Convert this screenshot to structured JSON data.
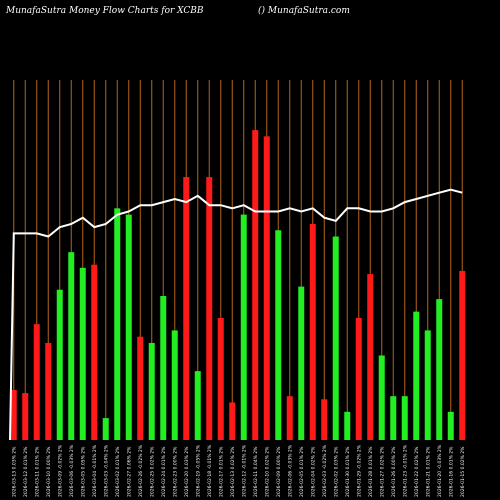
{
  "header": {
    "title": "MunafaSutra  Money Flow  Charts for XCBB",
    "site": "() MunafaSutra.com"
  },
  "colors": {
    "background": "#000000",
    "up": "#22ee22",
    "down": "#ff1a1a",
    "grid": "#b3661a",
    "line": "#ffffff"
  },
  "chart_data": {
    "type": "bar",
    "grid": true,
    "series": [
      {
        "values": [
          16,
          15,
          37,
          31,
          48,
          60,
          55,
          56,
          7,
          74,
          72,
          33,
          31,
          46,
          35,
          84,
          22,
          84,
          39,
          12,
          72,
          99,
          97,
          67,
          14,
          49,
          69,
          13,
          65,
          9,
          39,
          53,
          27,
          14,
          14,
          41,
          35,
          45,
          9,
          54
        ],
        "direction": [
          "down",
          "down",
          "down",
          "down",
          "up",
          "up",
          "up",
          "down",
          "up",
          "up",
          "up",
          "down",
          "up",
          "up",
          "up",
          "down",
          "up",
          "down",
          "down",
          "down",
          "up",
          "down",
          "down",
          "up",
          "down",
          "up",
          "down",
          "down",
          "up",
          "up",
          "down",
          "down",
          "up",
          "up",
          "up",
          "up",
          "up",
          "up",
          "up",
          "down"
        ]
      },
      {
        "values": [
          66,
          66,
          66,
          65,
          68,
          69,
          71,
          68,
          69,
          72,
          73,
          75,
          75,
          76,
          77,
          76,
          78,
          75,
          75,
          74,
          75,
          73,
          73,
          73,
          74,
          73,
          74,
          71,
          70,
          74,
          74,
          73,
          73,
          74,
          76,
          77,
          78,
          79,
          80,
          79
        ]
      }
    ],
    "ylim": [
      0,
      115
    ],
    "categories": [
      "2026-03-13 0.03% 2%",
      "2026-03-12 0.01% 2%",
      "2026-03-11 0.01% 2%",
      "2026-03-10 0.00% 2%",
      "2026-03-09 -0.02% 2%",
      "2026-03-06 -0.03% 2%",
      "2026-03-05 0.05% 2%",
      "2026-03-04 -0.01% 2%",
      "2026-03-03 -0.04% 2%",
      "2026-03-02 0.01% 2%",
      "2026-02-27 0.06% 2%",
      "2026-02-26 -0.02% 2%",
      "2026-02-25 0.02% 2%",
      "2026-02-24 0.01% 2%",
      "2026-02-23 0.00% 2%",
      "2026-02-20 0.03% 2%",
      "2026-02-19 -0.05% 2%",
      "2026-02-18 -0.01% 2%",
      "2026-02-17 0.01% 2%",
      "2026-02-13 0.02% 2%",
      "2026-02-12 -0.01% 2%",
      "2026-02-11 0.04% 2%",
      "2026-02-10 0.02% 2%",
      "2026-02-09 0.00% 2%",
      "2026-02-06 -0.03% 2%",
      "2026-02-05 0.01% 2%",
      "2026-02-04 0.02% 2%",
      "2026-02-03 -0.02% 2%",
      "2026-02-02 0.03% 2%",
      "2026-01-30 0.01% 2%",
      "2026-01-29 -0.02% 2%",
      "2026-01-28 0.01% 2%",
      "2026-01-27 0.02% 2%",
      "2026-01-26 0.00% 2%",
      "2026-01-23 -0.01% 2%",
      "2026-01-22 0.02% 2%",
      "2026-01-21 0.01% 2%",
      "2026-01-20 -0.03% 2%",
      "2026-01-16 0.01% 2%",
      "2026-01-15 0.02% 2%"
    ]
  }
}
